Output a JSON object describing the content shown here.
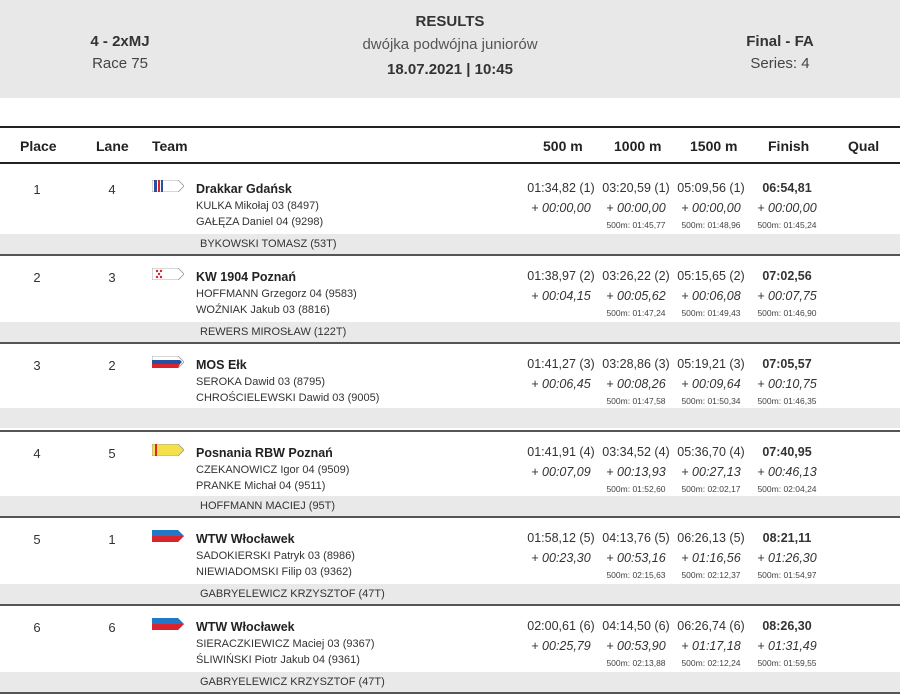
{
  "header": {
    "event_code": "4 - 2xMJ",
    "race": "Race 75",
    "title": "RESULTS",
    "subtitle": "dwójka podwójna juniorów",
    "datetime": "18.07.2021 | 10:45",
    "phase": "Final - FA",
    "series": "Series: 4"
  },
  "columns": {
    "place": "Place",
    "lane": "Lane",
    "team": "Team",
    "s500": "500 m",
    "s1000": "1000 m",
    "s1500": "1500 m",
    "finish": "Finish",
    "qual": "Qual"
  },
  "rows": [
    {
      "place": "1",
      "lane": "4",
      "club": "Drakkar Gdańsk",
      "flag": "flag-drakkar-icon",
      "athletes": [
        "KULKA  Mikołaj 03 (8497)",
        "GAŁĘZA  Daniel 04 (9298)"
      ],
      "coach": "BYKOWSKI TOMASZ (53T)",
      "s500": {
        "t": "01:34,82 (1)",
        "d": "+ 00:00,00",
        "s": ""
      },
      "s1000": {
        "t": "03:20,59 (1)",
        "d": "+ 00:00,00",
        "s": "500m: 01:45,77"
      },
      "s1500": {
        "t": "05:09,56 (1)",
        "d": "+ 00:00,00",
        "s": "500m: 01:48,96"
      },
      "finish": {
        "t": "06:54,81",
        "d": "+ 00:00,00",
        "s": "500m: 01:45,24"
      }
    },
    {
      "place": "2",
      "lane": "3",
      "club": "KW 1904 Poznań",
      "flag": "flag-kw1904-icon",
      "athletes": [
        "HOFFMANN  Grzegorz 04 (9583)",
        "WOŹNIAK  Jakub 03 (8816)"
      ],
      "coach": "REWERS MIROSŁAW (122T)",
      "s500": {
        "t": "01:38,97 (2)",
        "d": "+ 00:04,15",
        "s": ""
      },
      "s1000": {
        "t": "03:26,22 (2)",
        "d": "+ 00:05,62",
        "s": "500m: 01:47,24"
      },
      "s1500": {
        "t": "05:15,65 (2)",
        "d": "+ 00:06,08",
        "s": "500m: 01:49,43"
      },
      "finish": {
        "t": "07:02,56",
        "d": "+ 00:07,75",
        "s": "500m: 01:46,90"
      }
    },
    {
      "place": "3",
      "lane": "2",
      "club": "MOS Ełk",
      "flag": "flag-mos-elk-icon",
      "athletes": [
        "SEROKA  Dawid 03 (8795)",
        "CHROŚCIELEWSKI  Dawid 03 (9005)"
      ],
      "coach": "",
      "s500": {
        "t": "01:41,27 (3)",
        "d": "+ 00:06,45",
        "s": ""
      },
      "s1000": {
        "t": "03:28,86 (3)",
        "d": "+ 00:08,26",
        "s": "500m: 01:47,58"
      },
      "s1500": {
        "t": "05:19,21 (3)",
        "d": "+ 00:09,64",
        "s": "500m: 01:50,34"
      },
      "finish": {
        "t": "07:05,57",
        "d": "+ 00:10,75",
        "s": "500m: 01:46,35"
      }
    },
    {
      "place": "4",
      "lane": "5",
      "club": "Posnania RBW Poznań",
      "flag": "flag-posnania-icon",
      "athletes": [
        "CZEKANOWICZ  Igor 04 (9509)",
        "PRANKE  Michał 04 (9511)"
      ],
      "coach": "HOFFMANN MACIEJ (95T)",
      "s500": {
        "t": "01:41,91 (4)",
        "d": "+ 00:07,09",
        "s": ""
      },
      "s1000": {
        "t": "03:34,52 (4)",
        "d": "+ 00:13,93",
        "s": "500m: 01:52,60"
      },
      "s1500": {
        "t": "05:36,70 (4)",
        "d": "+ 00:27,13",
        "s": "500m: 02:02,17"
      },
      "finish": {
        "t": "07:40,95",
        "d": "+ 00:46,13",
        "s": "500m: 02:04,24"
      }
    },
    {
      "place": "5",
      "lane": "1",
      "club": "WTW Włocławek",
      "flag": "flag-wtw-icon",
      "athletes": [
        "SADOKIERSKI  Patryk 03 (8986)",
        "NIEWIADOMSKI  Filip 03 (9362)"
      ],
      "coach": "GABRYELEWICZ KRZYSZTOF (47T)",
      "s500": {
        "t": "01:58,12 (5)",
        "d": "+ 00:23,30",
        "s": ""
      },
      "s1000": {
        "t": "04:13,76 (5)",
        "d": "+ 00:53,16",
        "s": "500m: 02:15,63"
      },
      "s1500": {
        "t": "06:26,13 (5)",
        "d": "+ 01:16,56",
        "s": "500m: 02:12,37"
      },
      "finish": {
        "t": "08:21,11",
        "d": "+ 01:26,30",
        "s": "500m: 01:54,97"
      }
    },
    {
      "place": "6",
      "lane": "6",
      "club": "WTW Włocławek",
      "flag": "flag-wtw-icon",
      "athletes": [
        "SIERACZKIEWICZ  Maciej 03 (9367)",
        "ŚLIWIŃSKI  Piotr Jakub 04 (9361)"
      ],
      "coach": "GABRYELEWICZ KRZYSZTOF (47T)",
      "s500": {
        "t": "02:00,61 (6)",
        "d": "+ 00:25,79",
        "s": ""
      },
      "s1000": {
        "t": "04:14,50 (6)",
        "d": "+ 00:53,90",
        "s": "500m: 02:13,88"
      },
      "s1500": {
        "t": "06:26,74 (6)",
        "d": "+ 01:17,18",
        "s": "500m: 02:12,24"
      },
      "finish": {
        "t": "08:26,30",
        "d": "+ 01:31,49",
        "s": "500m: 01:59,55"
      }
    }
  ]
}
